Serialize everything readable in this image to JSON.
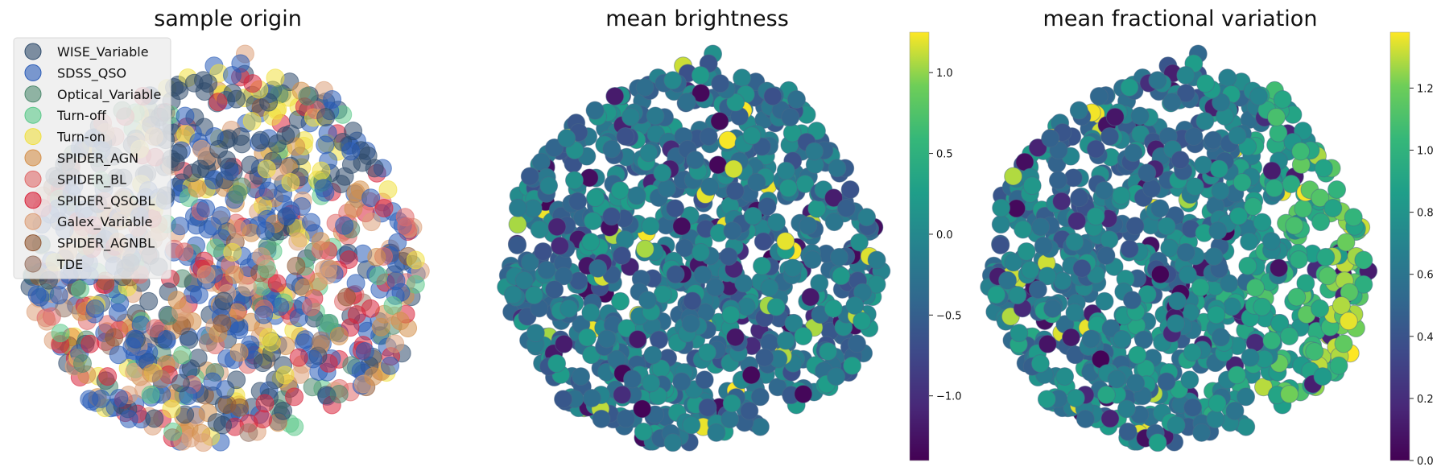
{
  "chart_data": [
    {
      "type": "scatter",
      "title": "sample origin",
      "axes_visible": false,
      "legend_position": "upper-left",
      "series": [
        {
          "name": "WISE_Variable",
          "color": "#2f4b6b"
        },
        {
          "name": "SDSS_QSO",
          "color": "#2a5cb8"
        },
        {
          "name": "Optical_Variable",
          "color": "#4f8a6f"
        },
        {
          "name": "Turn-off",
          "color": "#5cc98a"
        },
        {
          "name": "Turn-on",
          "color": "#f0e040"
        },
        {
          "name": "SPIDER_AGN",
          "color": "#d4904a"
        },
        {
          "name": "SPIDER_BL",
          "color": "#e06a6a"
        },
        {
          "name": "SPIDER_QSOBL",
          "color": "#d8253c"
        },
        {
          "name": "Galex_Variable",
          "color": "#dca07a"
        },
        {
          "name": "SPIDER_AGNBL",
          "color": "#925a36"
        },
        {
          "name": "TDE",
          "color": "#9b7a6a"
        }
      ]
    },
    {
      "type": "scatter",
      "title": "mean brightness",
      "axes_visible": false,
      "colormap": "viridis",
      "colorbar": {
        "range": [
          -1.4,
          1.25
        ],
        "ticks": [
          1.0,
          0.5,
          0.0,
          -0.5,
          -1.0
        ],
        "tick_labels": [
          "1.0",
          "0.5",
          "0.0",
          "−0.5",
          "−1.0"
        ]
      }
    },
    {
      "type": "scatter",
      "title": "mean fractional variation",
      "axes_visible": false,
      "colormap": "viridis",
      "colorbar": {
        "range": [
          0.0,
          1.38
        ],
        "ticks": [
          1.2,
          1.0,
          0.8,
          0.6,
          0.4,
          0.2,
          0.0
        ],
        "tick_labels": [
          "1.2",
          "1.0",
          "0.8",
          "0.6",
          "0.4",
          "0.2",
          "0.0"
        ]
      }
    }
  ]
}
